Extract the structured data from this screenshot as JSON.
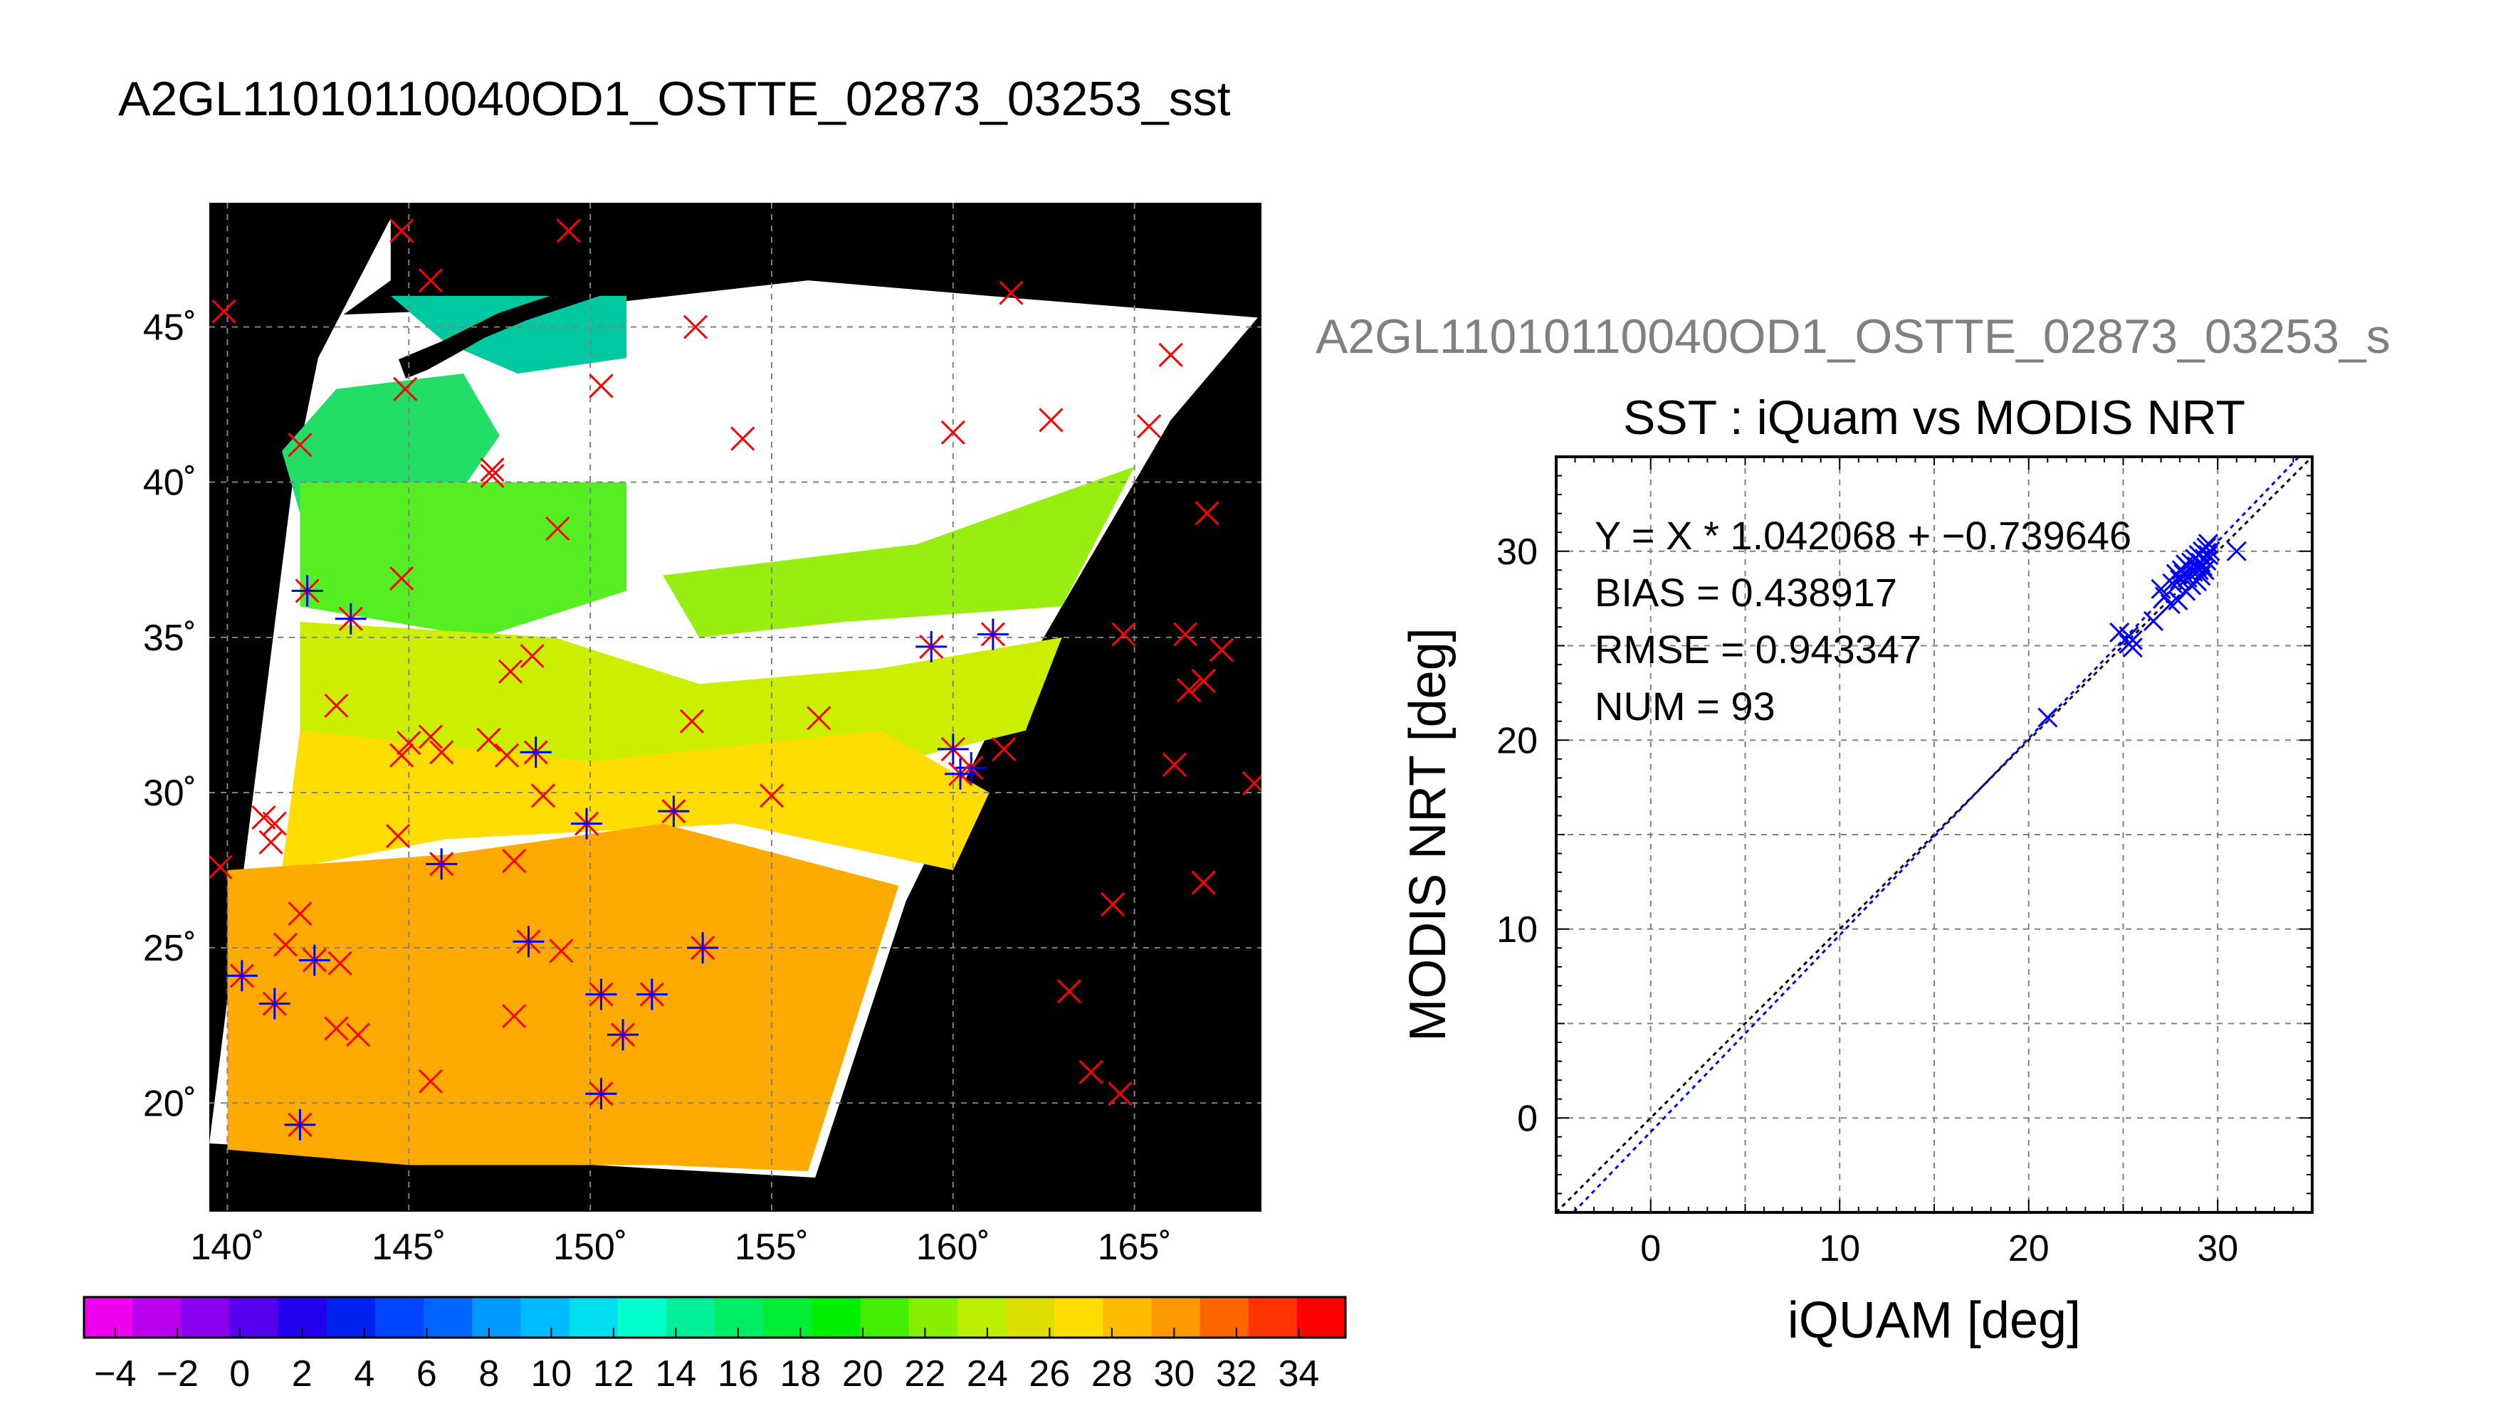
{
  "page_title": "A2GL11010110040OD1_OSTTE_02873_03253_sst",
  "colors": {
    "map_background": "#000000",
    "grid": "#808080",
    "land_mask": "#000000"
  },
  "chart_data": [
    {
      "type": "heatmap",
      "title": "",
      "xlabel": "",
      "ylabel": "",
      "xlim": [
        139.5,
        168.5
      ],
      "ylim": [
        16.5,
        49
      ],
      "x_ticks": [
        140,
        145,
        150,
        155,
        160,
        165
      ],
      "x_tick_labels": [
        "140˚",
        "145˚",
        "150˚",
        "155˚",
        "160˚",
        "165˚"
      ],
      "y_ticks": [
        20,
        25,
        30,
        35,
        40,
        45
      ],
      "y_tick_labels": [
        "20˚",
        "25˚",
        "30˚",
        "35˚",
        "40˚",
        "45˚"
      ],
      "grid": true,
      "regions": [
        {
          "color": "#00c8a0",
          "points": [
            [
              144.5,
              46
            ],
            [
              151,
              46
            ],
            [
              151,
              44
            ],
            [
              148,
              43.5
            ],
            [
              146,
              44.5
            ]
          ]
        },
        {
          "color": "#22dd66",
          "points": [
            [
              143,
              43
            ],
            [
              146.5,
              43.5
            ],
            [
              147.5,
              41.5
            ],
            [
              146,
              39
            ],
            [
              142,
              39
            ],
            [
              141.5,
              41
            ]
          ]
        },
        {
          "color": "#55ee22",
          "points": [
            [
              142,
              40
            ],
            [
              151,
              40
            ],
            [
              151,
              36.5
            ],
            [
              147,
              35
            ],
            [
              142,
              36
            ]
          ]
        },
        {
          "color": "#99ee11",
          "points": [
            [
              152,
              37
            ],
            [
              159,
              38
            ],
            [
              165,
              40.5
            ],
            [
              163,
              36
            ],
            [
              157,
              35.5
            ],
            [
              153,
              35
            ]
          ]
        },
        {
          "color": "#ccee00",
          "points": [
            [
              142,
              35.5
            ],
            [
              149,
              35
            ],
            [
              153,
              33.5
            ],
            [
              158,
              34
            ],
            [
              163,
              35
            ],
            [
              162,
              32
            ],
            [
              155,
              30
            ],
            [
              149,
              31
            ],
            [
              142,
              31.5
            ]
          ]
        },
        {
          "color": "#ffdd00",
          "points": [
            [
              142,
              32
            ],
            [
              150,
              31
            ],
            [
              158,
              32
            ],
            [
              161,
              30
            ],
            [
              160,
              27.5
            ],
            [
              154,
              29
            ],
            [
              146,
              28.5
            ],
            [
              141.5,
              27.5
            ]
          ]
        },
        {
          "color": "#ffaa00",
          "points": [
            [
              140,
              27.5
            ],
            [
              146,
              28
            ],
            [
              152,
              29
            ],
            [
              158.5,
              27
            ],
            [
              156,
              17.8
            ],
            [
              152,
              18
            ],
            [
              145,
              18
            ],
            [
              140,
              18.5
            ]
          ]
        }
      ],
      "stations": [
        {
          "lon": 139.9,
          "lat": 45.5,
          "matched": false
        },
        {
          "lon": 144.8,
          "lat": 48.1,
          "matched": false
        },
        {
          "lon": 145.6,
          "lat": 46.5,
          "matched": false
        },
        {
          "lon": 149.4,
          "lat": 48.1,
          "matched": false
        },
        {
          "lon": 152.9,
          "lat": 45.0,
          "matched": false
        },
        {
          "lon": 161.6,
          "lat": 46.1,
          "matched": false
        },
        {
          "lon": 166.0,
          "lat": 44.1,
          "matched": false
        },
        {
          "lon": 150.3,
          "lat": 43.1,
          "matched": false
        },
        {
          "lon": 144.9,
          "lat": 43.0,
          "matched": false
        },
        {
          "lon": 142.0,
          "lat": 41.2,
          "matched": false
        },
        {
          "lon": 147.3,
          "lat": 40.4,
          "matched": false
        },
        {
          "lon": 147.3,
          "lat": 40.2,
          "matched": false
        },
        {
          "lon": 154.2,
          "lat": 41.4,
          "matched": false
        },
        {
          "lon": 160.0,
          "lat": 41.6,
          "matched": false
        },
        {
          "lon": 162.7,
          "lat": 42.0,
          "matched": false
        },
        {
          "lon": 165.4,
          "lat": 41.8,
          "matched": false
        },
        {
          "lon": 149.1,
          "lat": 38.5,
          "matched": false
        },
        {
          "lon": 167.0,
          "lat": 39.0,
          "matched": false
        },
        {
          "lon": 144.8,
          "lat": 36.9,
          "matched": false
        },
        {
          "lon": 142.2,
          "lat": 36.5,
          "matched": true
        },
        {
          "lon": 143.4,
          "lat": 35.6,
          "matched": true
        },
        {
          "lon": 148.4,
          "lat": 34.4,
          "matched": false
        },
        {
          "lon": 147.8,
          "lat": 33.9,
          "matched": false
        },
        {
          "lon": 143.0,
          "lat": 32.8,
          "matched": false
        },
        {
          "lon": 164.7,
          "lat": 35.1,
          "matched": false
        },
        {
          "lon": 166.4,
          "lat": 35.1,
          "matched": false
        },
        {
          "lon": 167.4,
          "lat": 34.6,
          "matched": false
        },
        {
          "lon": 166.9,
          "lat": 33.6,
          "matched": false
        },
        {
          "lon": 166.5,
          "lat": 33.3,
          "matched": false
        },
        {
          "lon": 152.8,
          "lat": 32.3,
          "matched": false
        },
        {
          "lon": 156.3,
          "lat": 32.4,
          "matched": false
        },
        {
          "lon": 145.0,
          "lat": 31.6,
          "matched": false
        },
        {
          "lon": 145.6,
          "lat": 31.8,
          "matched": false
        },
        {
          "lon": 145.9,
          "lat": 31.3,
          "matched": false
        },
        {
          "lon": 144.8,
          "lat": 31.2,
          "matched": false
        },
        {
          "lon": 147.2,
          "lat": 31.7,
          "matched": false
        },
        {
          "lon": 147.7,
          "lat": 31.2,
          "matched": false
        },
        {
          "lon": 148.5,
          "lat": 31.3,
          "matched": true
        },
        {
          "lon": 161.4,
          "lat": 31.4,
          "matched": false
        },
        {
          "lon": 166.1,
          "lat": 30.9,
          "matched": false
        },
        {
          "lon": 168.3,
          "lat": 30.3,
          "matched": false
        },
        {
          "lon": 148.7,
          "lat": 29.9,
          "matched": false
        },
        {
          "lon": 155.0,
          "lat": 29.9,
          "matched": false
        },
        {
          "lon": 141.0,
          "lat": 29.2,
          "matched": false
        },
        {
          "lon": 141.3,
          "lat": 29.0,
          "matched": false
        },
        {
          "lon": 141.2,
          "lat": 28.4,
          "matched": false
        },
        {
          "lon": 144.7,
          "lat": 28.6,
          "matched": false
        },
        {
          "lon": 147.9,
          "lat": 27.8,
          "matched": false
        },
        {
          "lon": 139.8,
          "lat": 27.6,
          "matched": false
        },
        {
          "lon": 166.9,
          "lat": 27.1,
          "matched": false
        },
        {
          "lon": 164.4,
          "lat": 26.4,
          "matched": false
        },
        {
          "lon": 142.0,
          "lat": 26.1,
          "matched": false
        },
        {
          "lon": 141.6,
          "lat": 25.1,
          "matched": false
        },
        {
          "lon": 143.1,
          "lat": 24.5,
          "matched": false
        },
        {
          "lon": 149.2,
          "lat": 24.9,
          "matched": false
        },
        {
          "lon": 163.2,
          "lat": 23.6,
          "matched": false
        },
        {
          "lon": 147.9,
          "lat": 22.8,
          "matched": false
        },
        {
          "lon": 143.0,
          "lat": 22.4,
          "matched": false
        },
        {
          "lon": 143.6,
          "lat": 22.2,
          "matched": false
        },
        {
          "lon": 145.6,
          "lat": 20.7,
          "matched": false
        },
        {
          "lon": 163.8,
          "lat": 21.0,
          "matched": false
        },
        {
          "lon": 164.6,
          "lat": 20.3,
          "matched": false
        },
        {
          "lon": 149.9,
          "lat": 29.0,
          "matched": true
        },
        {
          "lon": 152.3,
          "lat": 29.4,
          "matched": true
        },
        {
          "lon": 145.9,
          "lat": 27.7,
          "matched": true
        },
        {
          "lon": 148.3,
          "lat": 25.2,
          "matched": true
        },
        {
          "lon": 153.1,
          "lat": 25.0,
          "matched": true
        },
        {
          "lon": 142.4,
          "lat": 24.6,
          "matched": true
        },
        {
          "lon": 140.4,
          "lat": 24.1,
          "matched": true
        },
        {
          "lon": 141.3,
          "lat": 23.2,
          "matched": true
        },
        {
          "lon": 150.3,
          "lat": 23.5,
          "matched": true
        },
        {
          "lon": 151.7,
          "lat": 23.5,
          "matched": true
        },
        {
          "lon": 150.9,
          "lat": 22.2,
          "matched": true
        },
        {
          "lon": 150.3,
          "lat": 20.3,
          "matched": true
        },
        {
          "lon": 142.0,
          "lat": 19.3,
          "matched": true
        },
        {
          "lon": 159.4,
          "lat": 34.7,
          "matched": true
        },
        {
          "lon": 161.1,
          "lat": 35.1,
          "matched": true
        },
        {
          "lon": 160.0,
          "lat": 31.4,
          "matched": true
        },
        {
          "lon": 160.5,
          "lat": 30.8,
          "matched": true
        },
        {
          "lon": 160.2,
          "lat": 30.6,
          "matched": true
        }
      ]
    },
    {
      "type": "scatter",
      "title": "SST : iQuam vs MODIS NRT",
      "xlabel": "iQUAM [deg]",
      "ylabel": "MODIS NRT [deg]",
      "xlim": [
        -5,
        35
      ],
      "ylim": [
        -5,
        35
      ],
      "x_ticks": [
        0,
        10,
        20,
        30
      ],
      "y_ticks": [
        0,
        10,
        20,
        30
      ],
      "grid": true,
      "annotations": [
        "Y = X * 1.042068 + −0.739646",
        "BIAS = 0.438917",
        "RMSE = 0.943347",
        "NUM = 93"
      ],
      "fit": {
        "slope": 1.042068,
        "intercept": -0.739646
      },
      "points": [
        [
          21.0,
          21.2
        ],
        [
          24.8,
          25.7
        ],
        [
          25.3,
          25.5
        ],
        [
          25.3,
          25.1
        ],
        [
          25.5,
          24.9
        ],
        [
          25.5,
          25.3
        ],
        [
          26.6,
          26.3
        ],
        [
          27.0,
          28.0
        ],
        [
          27.2,
          27.6
        ],
        [
          27.5,
          27.2
        ],
        [
          27.6,
          28.3
        ],
        [
          27.8,
          28.8
        ],
        [
          28.0,
          28.5
        ],
        [
          28.1,
          29.0
        ],
        [
          28.2,
          28.8
        ],
        [
          28.3,
          29.3
        ],
        [
          28.4,
          28.6
        ],
        [
          28.5,
          29.1
        ],
        [
          28.6,
          29.4
        ],
        [
          28.7,
          28.9
        ],
        [
          28.8,
          29.6
        ],
        [
          28.9,
          29.2
        ],
        [
          29.0,
          29.0
        ],
        [
          29.0,
          29.8
        ],
        [
          29.1,
          29.4
        ],
        [
          29.2,
          30.0
        ],
        [
          29.2,
          29.2
        ],
        [
          29.3,
          29.6
        ],
        [
          29.4,
          30.2
        ],
        [
          29.4,
          29.5
        ],
        [
          29.5,
          30.4
        ],
        [
          29.5,
          29.8
        ],
        [
          29.6,
          30.0
        ],
        [
          28.9,
          28.4
        ],
        [
          28.6,
          28.2
        ],
        [
          28.3,
          27.9
        ],
        [
          29.1,
          28.7
        ],
        [
          29.3,
          29.0
        ],
        [
          31.0,
          30.0
        ],
        [
          27.9,
          27.4
        ]
      ],
      "subtitle_text": "A2GL11010110040OD1_OSTTE_02873_03253_s"
    }
  ],
  "colorbar": {
    "ticks": [
      -4,
      -2,
      0,
      2,
      4,
      6,
      8,
      10,
      12,
      14,
      16,
      18,
      20,
      22,
      24,
      26,
      28,
      30,
      32,
      34
    ],
    "tick_labels": [
      "−4",
      "−2",
      "0",
      "2",
      "4",
      "6",
      "8",
      "10",
      "12",
      "14",
      "16",
      "18",
      "20",
      "22",
      "24",
      "26",
      "28",
      "30",
      "32",
      "34"
    ],
    "colors": [
      "#ee00ee",
      "#bb00ee",
      "#8800ee",
      "#5500ee",
      "#2200ee",
      "#0022ee",
      "#0044ff",
      "#0066ff",
      "#0099ff",
      "#00bbff",
      "#00ddee",
      "#00ffcc",
      "#00ee99",
      "#00ee66",
      "#00ee33",
      "#00ee00",
      "#44ee00",
      "#88ee00",
      "#bbee00",
      "#dddd00",
      "#ffdd00",
      "#ffbb00",
      "#ff9900",
      "#ff6600",
      "#ff3300",
      "#ff0000"
    ]
  }
}
